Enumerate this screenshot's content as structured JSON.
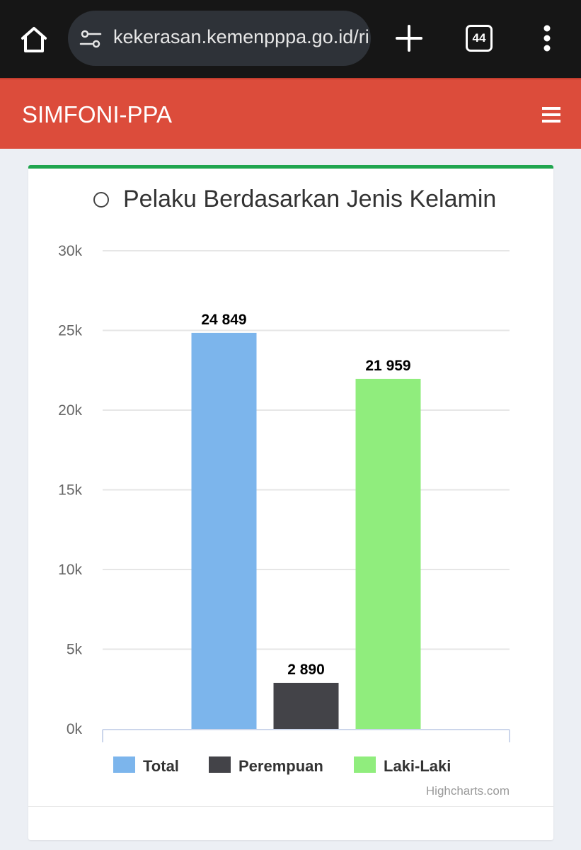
{
  "browser": {
    "url": "kekerasan.kemenpppa.go.id/ri",
    "tab_count": "44"
  },
  "app": {
    "title": "SIMFONI-PPA"
  },
  "card": {
    "title": "Pelaku Berdasarkan Jenis Kelamin"
  },
  "chart_data": {
    "type": "bar",
    "title": "Pelaku Berdasarkan Jenis Kelamin",
    "xlabel": "",
    "ylabel": "",
    "ylim": [
      0,
      30000
    ],
    "yticks": [
      0,
      5000,
      10000,
      15000,
      20000,
      25000,
      30000
    ],
    "ytick_labels": [
      "0k",
      "5k",
      "10k",
      "15k",
      "20k",
      "25k",
      "30k"
    ],
    "grid": true,
    "legend": "bottom",
    "series": [
      {
        "name": "Total",
        "values": [
          24849
        ],
        "label": "24 849",
        "color": "#7cb5ec"
      },
      {
        "name": "Perempuan",
        "values": [
          2890
        ],
        "label": "2 890",
        "color": "#434348"
      },
      {
        "name": "Laki-Laki",
        "values": [
          21959
        ],
        "label": "21 959",
        "color": "#90ed7d"
      }
    ],
    "credits": "Highcharts.com"
  }
}
